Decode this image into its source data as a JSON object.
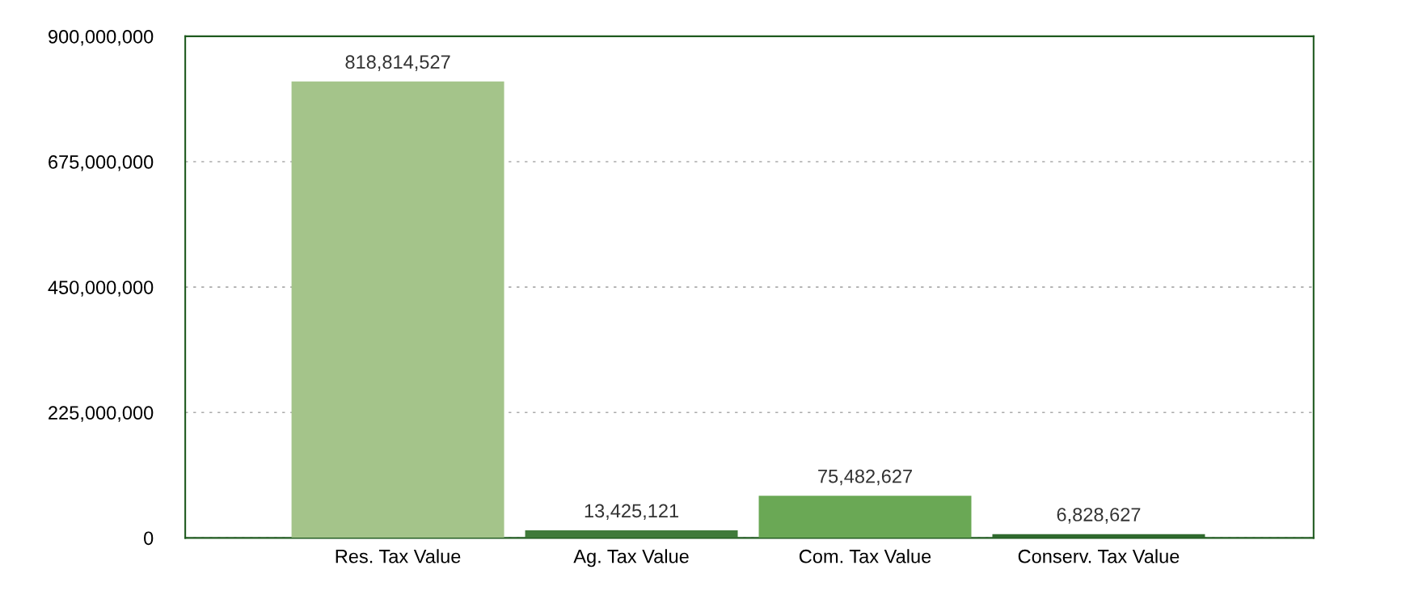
{
  "chart_data": {
    "type": "bar",
    "categories": [
      "Res. Tax Value",
      "Ag. Tax Value",
      "Com. Tax Value",
      "Conserv. Tax Value"
    ],
    "values": [
      818814527,
      13425121,
      75482627,
      6828627
    ],
    "colors": [
      "#a4c48a",
      "#3f7a3a",
      "#6aa855",
      "#2f6a2e"
    ],
    "ylim": [
      0,
      900000000
    ],
    "yticks": [
      0,
      {
        "value": 225000000,
        "label": "225,000,000"
      },
      {
        "value": 450000000,
        "label": "450,000,000"
      },
      {
        "value": 675000000,
        "label": "675,000,000"
      },
      {
        "value": 900000000,
        "label": "900,000,000"
      }
    ],
    "value_labels": [
      "818,814,527",
      "13,425,121",
      "75,482,627",
      "6,828,627"
    ],
    "grid": "y"
  }
}
